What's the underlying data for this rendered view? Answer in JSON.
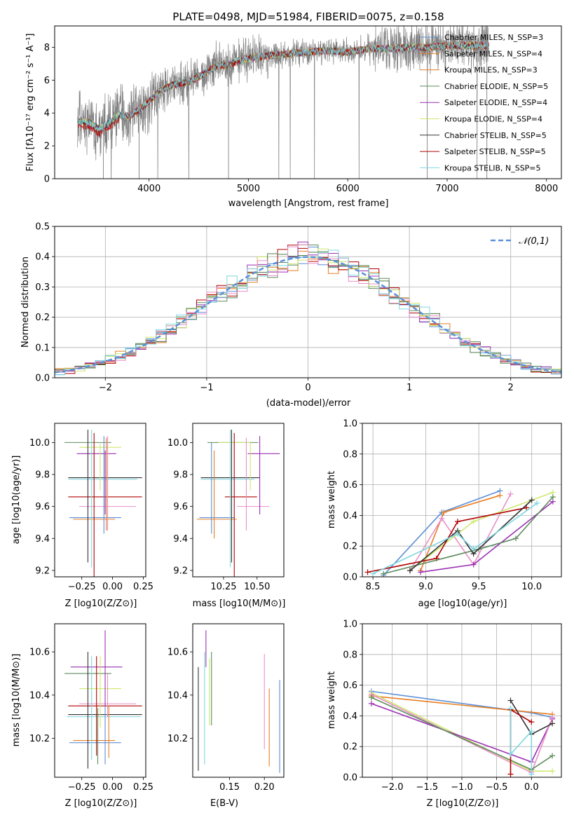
{
  "colors": {
    "gray": "#808080",
    "blue": "#5b8fd6",
    "orange": "#e87e22",
    "green": "#5e8c5e",
    "purple": "#9b30b3",
    "yellowgreen": "#cde86b",
    "black": "#333333",
    "red": "#b00000",
    "cyan": "#7fd6e0",
    "pink": "#e98fc8",
    "darkgreen": "#4e7e4e"
  },
  "chart_data": [
    {
      "id": "spectrum",
      "type": "line",
      "title": "PLATE=0498, MJD=51984, FIBERID=0075, z=0.158",
      "xlabel": "wavelength [Angstrom, rest frame]",
      "ylabel": "Flux [fλ10⁻¹⁷ erg cm⁻² s⁻¹ A⁻¹]",
      "xlim": [
        3050,
        8150
      ],
      "ylim": [
        0,
        9.3
      ],
      "xticks": [
        4000,
        5000,
        6000,
        7000,
        8000
      ],
      "yticks": [
        0,
        2,
        4,
        6,
        8
      ],
      "continuum": [
        [
          3280,
          3.5
        ],
        [
          3400,
          3.4
        ],
        [
          3500,
          3.0
        ],
        [
          3600,
          3.4
        ],
        [
          3700,
          3.9
        ],
        [
          3800,
          3.8
        ],
        [
          3900,
          4.2
        ],
        [
          4000,
          4.7
        ],
        [
          4100,
          5.3
        ],
        [
          4200,
          5.6
        ],
        [
          4300,
          5.8
        ],
        [
          4400,
          5.9
        ],
        [
          4500,
          6.2
        ],
        [
          4600,
          6.6
        ],
        [
          4700,
          6.9
        ],
        [
          4800,
          6.9
        ],
        [
          4900,
          7.2
        ],
        [
          5000,
          7.3
        ],
        [
          5200,
          7.5
        ],
        [
          5400,
          7.6
        ],
        [
          5600,
          7.7
        ],
        [
          5800,
          7.8
        ],
        [
          6000,
          7.7
        ],
        [
          6200,
          7.9
        ],
        [
          6400,
          7.9
        ],
        [
          6600,
          8.0
        ],
        [
          6800,
          8.0
        ],
        [
          7000,
          8.1
        ],
        [
          7200,
          8.1
        ],
        [
          7420,
          8.1
        ]
      ],
      "data_range": [
        3280,
        7420
      ],
      "legend_position": "top-right",
      "legend": [
        "Chabrier MILES, N_SSP=3",
        "Salpeter MILES, N_SSP=4",
        "Kroupa MILES, N_SSP=3",
        "Chabrier ELODIE, N_SSP=5",
        "Salpeter ELODIE, N_SSP=4",
        "Kroupa ELODIE, N_SSP=4",
        "Chabrier STELIB, N_SSP=5",
        "Salpeter STELIB, N_SSP=5",
        "Kroupa STELIB, N_SSP=5"
      ]
    },
    {
      "id": "residuals",
      "type": "histogram",
      "xlabel": "(data-model)/error",
      "ylabel": "Normed distribution",
      "xlim": [
        -2.5,
        2.5
      ],
      "ylim": [
        0,
        0.5
      ],
      "xticks": [
        -2,
        -1,
        0,
        1,
        2
      ],
      "yticks": [
        0.0,
        0.1,
        0.2,
        0.3,
        0.4,
        0.5
      ],
      "bin_width": 0.1,
      "legend": "𝒩(0,1)",
      "legend_position": "top-right"
    },
    {
      "id": "age_vs_Z",
      "type": "errorbar",
      "xlabel": "Z [log10(Z/Z⊙)]",
      "ylabel": "age  [log10(age/yr)]",
      "xlim": [
        -0.47,
        0.27
      ],
      "ylim": [
        9.16,
        10.12
      ],
      "xticks": [
        -0.25,
        0.0,
        0.25
      ],
      "yticks": [
        9.2,
        9.4,
        9.6,
        9.8,
        10.0
      ]
    },
    {
      "id": "age_vs_mass",
      "type": "errorbar",
      "xlabel": "mass [log10(M/M⊙)]",
      "ylabel": "",
      "xlim": [
        10.02,
        10.7
      ],
      "ylim": [
        9.16,
        10.12
      ],
      "xticks": [
        10.25,
        10.5
      ],
      "yticks": [
        9.2,
        9.4,
        9.6,
        9.8,
        10.0
      ]
    },
    {
      "id": "mass_weight_vs_age",
      "type": "line",
      "xlabel": "age  [log10(age/yr)]",
      "ylabel": "mass weight",
      "xlim": [
        8.4,
        10.28
      ],
      "ylim": [
        0,
        1
      ],
      "xticks": [
        8.5,
        9.0,
        9.5,
        10.0
      ],
      "yticks": [
        0.0,
        0.2,
        0.4,
        0.6,
        0.8,
        1.0
      ]
    },
    {
      "id": "mass_vs_Z",
      "type": "errorbar",
      "xlabel": "Z [log10(Z/Z⊙)]",
      "ylabel": "mass [log10(M/M⊙)]",
      "xlim": [
        -0.47,
        0.27
      ],
      "ylim": [
        10.02,
        10.73
      ],
      "xticks": [
        -0.25,
        0.0,
        0.25
      ],
      "yticks": [
        10.2,
        10.4,
        10.6
      ]
    },
    {
      "id": "mass_vs_EBV",
      "type": "errorbar",
      "xlabel": "E(B-V)",
      "ylabel": "",
      "xlim": [
        0.097,
        0.228
      ],
      "ylim": [
        10.02,
        10.73
      ],
      "xticks": [
        0.15,
        0.2
      ],
      "yticks": [
        10.2,
        10.4,
        10.6
      ]
    },
    {
      "id": "mass_weight_vs_Z",
      "type": "line",
      "xlabel": "Z [log10(Z/Z⊙)]",
      "ylabel": "mass weight",
      "xlim": [
        -2.43,
        0.43
      ],
      "ylim": [
        0,
        1
      ],
      "xticks": [
        -2.0,
        -1.5,
        -1.0,
        -0.5,
        0.0
      ],
      "yticks": [
        0.0,
        0.2,
        0.4,
        0.6,
        0.8,
        1.0
      ]
    }
  ],
  "models": [
    {
      "name": "Chabrier MILES",
      "color": "#5b8fd6",
      "Z": -0.06,
      "Zerr": 0.14,
      "age": 9.53,
      "ageErr": 0.15,
      "mass": 10.18,
      "massErr": 0.08,
      "ebv": 0.222,
      "ebvErr": 0.21,
      "wAge": [
        [
          8.6,
          0.01
        ],
        [
          9.2,
          0.42
        ],
        [
          9.7,
          0.57
        ]
      ],
      "wZ": [
        [
          -2.3,
          0.56
        ],
        [
          0.0,
          0.4
        ],
        [
          0.3,
          0.39
        ]
      ]
    },
    {
      "name": "Salpeter MILES",
      "color": "#e87e22",
      "Z": -0.1,
      "Zerr": 0.16,
      "age": 9.52,
      "ageErr": 0.11,
      "mass": 10.19,
      "massErr": 0.08,
      "ebv": 0.207,
      "ebvErr": 0.18,
      "wAge": [
        [
          9.0,
          0.04
        ],
        [
          9.2,
          0.41
        ],
        [
          9.7,
          0.53
        ]
      ],
      "wZ": [
        [
          -2.3,
          0.53
        ],
        [
          0.0,
          0.1
        ],
        [
          0.3,
          0.41
        ]
      ]
    },
    {
      "name": "Kroupa MILES",
      "color": "#cde86b",
      "Z": -0.1,
      "Zerr": 0.17,
      "age": 9.97,
      "ageErr": 0.14,
      "mass": 10.43,
      "massErr": 0.14,
      "ebv": 0.121,
      "ebvErr": 0.15,
      "wAge": [
        [
          8.8,
          0.04
        ],
        [
          9.5,
          0.35
        ],
        [
          10.2,
          0.55
        ]
      ],
      "wZ": [
        [
          -2.3,
          0.52
        ],
        [
          0.0,
          0.04
        ],
        [
          0.3,
          0.41
        ]
      ]
    }
  ]
}
